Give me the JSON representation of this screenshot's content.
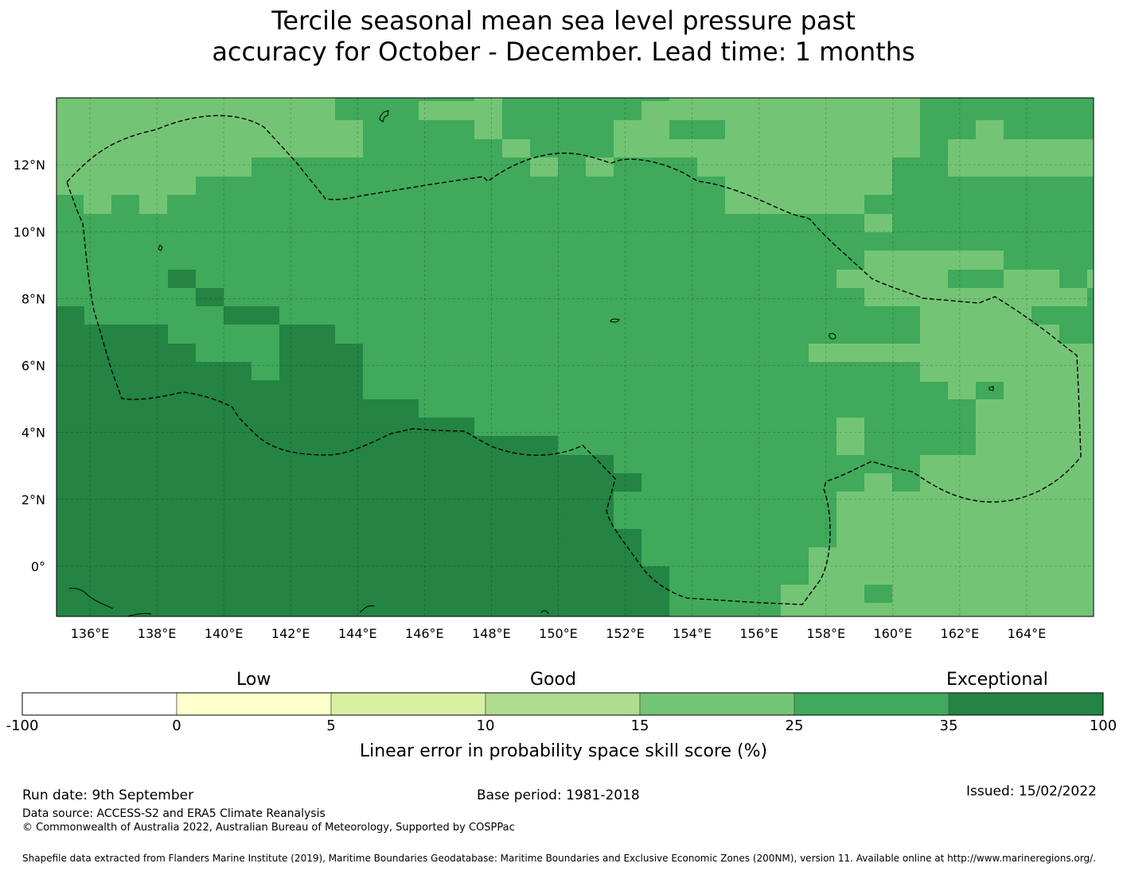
{
  "title": {
    "line1": "Tercile seasonal mean sea level pressure past",
    "line2": "accuracy for October - December. Lead time: 1 months"
  },
  "map": {
    "lon_range": [
      135,
      166
    ],
    "lat_range": [
      -1.5,
      14
    ],
    "x_ticks": [
      "136°E",
      "138°E",
      "140°E",
      "142°E",
      "144°E",
      "146°E",
      "148°E",
      "150°E",
      "152°E",
      "154°E",
      "156°E",
      "158°E",
      "160°E",
      "162°E",
      "164°E"
    ],
    "y_ticks": [
      "12°N",
      "10°N",
      "8°N",
      "6°N",
      "4°N",
      "2°N",
      "0°"
    ],
    "grid": true,
    "boundary_style": "dashed",
    "base_category_color": "#40a95b",
    "category_colors": {
      "15-25": "#74c476",
      "25-35": "#40a95b",
      "35-100": "#238443"
    }
  },
  "colorbar": {
    "categories": [
      "Low",
      "Good",
      "Exceptional"
    ],
    "tick_labels": [
      "-100",
      "0",
      "5",
      "10",
      "15",
      "25",
      "35",
      "100"
    ],
    "colors": [
      "#ffffff",
      "#ffffcc",
      "#d9f0a3",
      "#addd8e",
      "#74c476",
      "#40a95b",
      "#238443"
    ],
    "label": "Linear error in probability space skill score (%)"
  },
  "footer": {
    "run_date": "Run date: 9th September",
    "base_period": "Base period: 1981-2018",
    "issued": "Issued: 15/02/2022",
    "data_source": "Data source: ACCESS-S2 and ERA5 Climate Reanalysis",
    "copyright": "© Commonwealth of Australia 2022, Australian Bureau of Meteorology, Supported by COSPPac",
    "shapefile": "Shapefile data extracted from Flanders Marine Institute (2019), Maritime Boundaries Geodatabase: Maritime Boundaries and Exclusive Economic Zones (200NM), version 11. Available online at http://www.marineregions.org/."
  }
}
